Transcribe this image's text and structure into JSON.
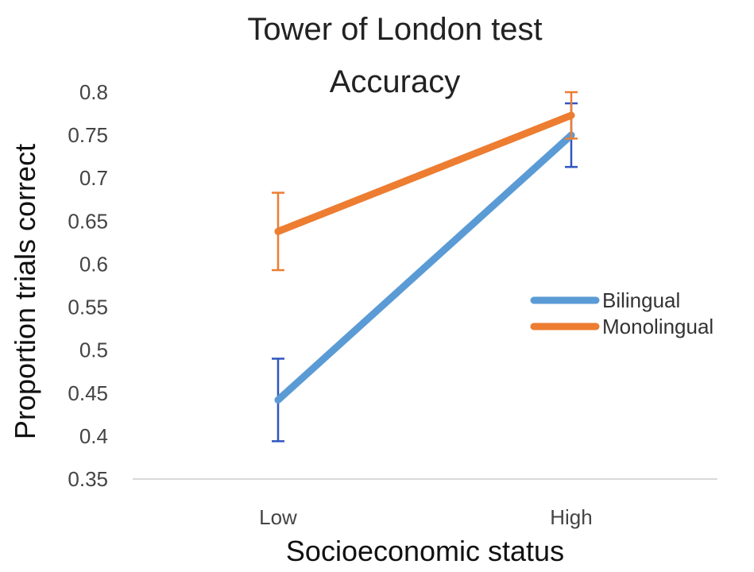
{
  "chart_data": {
    "type": "line",
    "title": [
      "Tower of London test",
      "Accuracy"
    ],
    "xlabel": "Socioeconomic status",
    "ylabel": "Proportion trials correct",
    "categories": [
      "Low",
      "High"
    ],
    "ylim": [
      0.35,
      0.8
    ],
    "yticks": [
      "0.35",
      "0.4",
      "0.45",
      "0.5",
      "0.55",
      "0.6",
      "0.65",
      "0.7",
      "0.75",
      "0.8"
    ],
    "grid": false,
    "legend_position": "right",
    "series": [
      {
        "name": "Bilingual",
        "color": "#5B9BD5",
        "error_color": "#2F55C0",
        "values": [
          0.442,
          0.75
        ],
        "error": [
          0.048,
          0.037
        ]
      },
      {
        "name": "Monolingual",
        "color": "#ED7D31",
        "error_color": "#ED7D31",
        "values": [
          0.638,
          0.773
        ],
        "error": [
          0.045,
          0.027
        ]
      }
    ]
  }
}
